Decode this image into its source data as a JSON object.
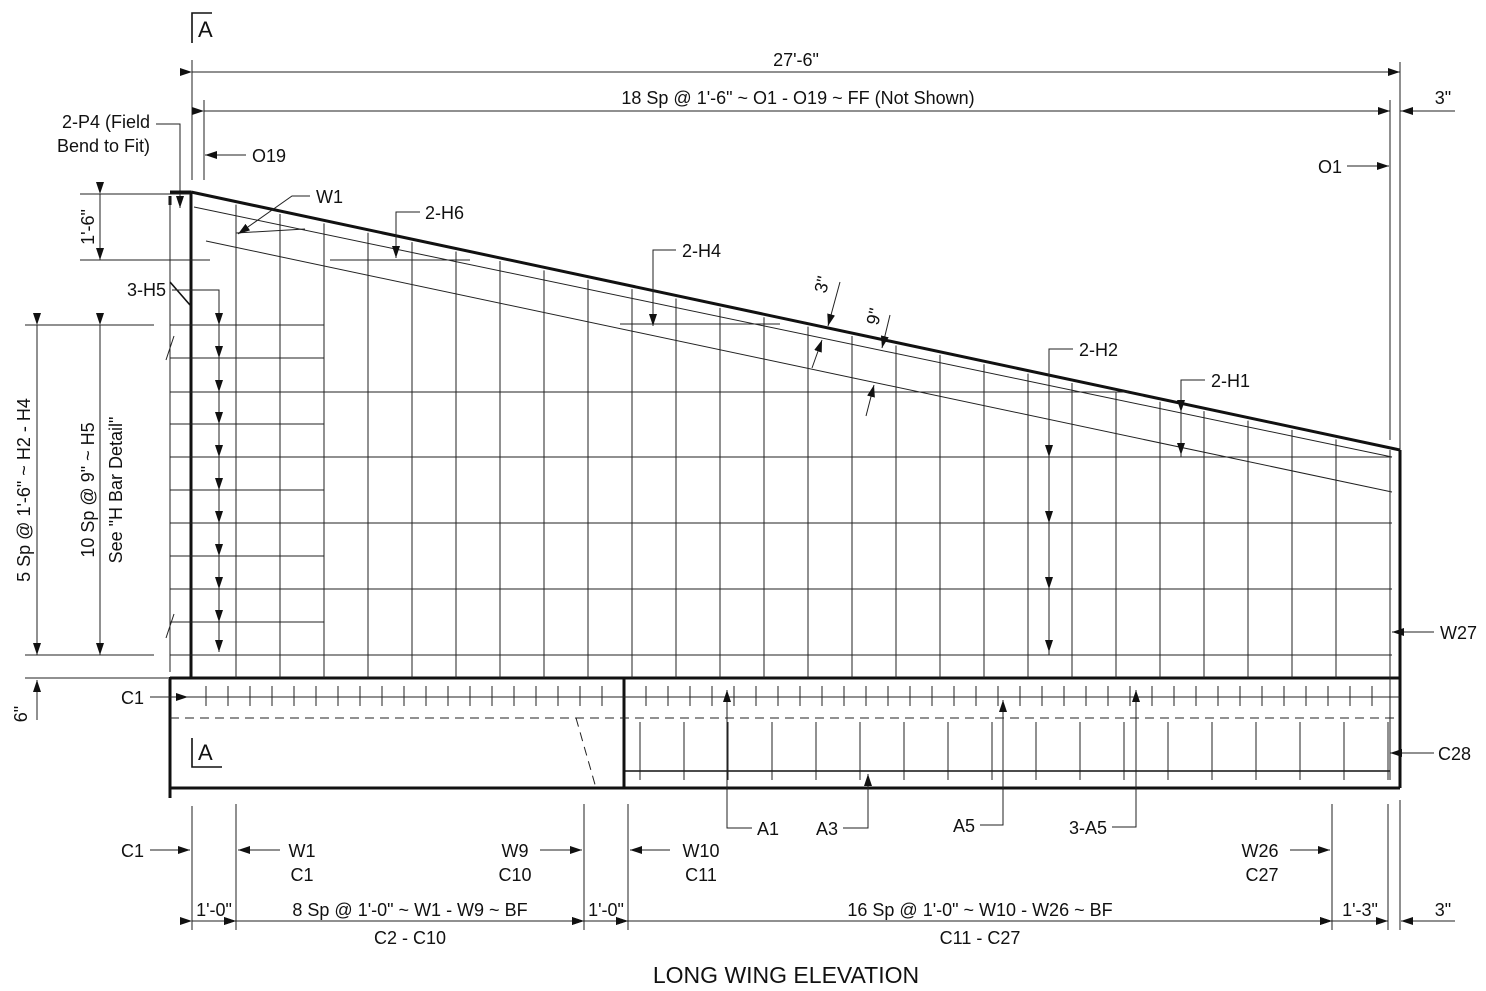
{
  "title": "LONG WING ELEVATION",
  "section_mark": "A",
  "dims": {
    "overall": "27'-6\"",
    "o_spacing": "18 Sp @ 1'-6\" ~ O1 - O19 ~ FF (Not Shown)",
    "top_right": "3\"",
    "bottom_right": "3\"",
    "h4_spacing": "5 Sp @ 1'-6\" ~ H2 - H4",
    "h5_spacing": "10 Sp @ 9\" ~ H5",
    "h5_note": "See \"H Bar Detail\"",
    "one_six": "1'-6\"",
    "six": "6\"",
    "three_slope": "3\"",
    "nine_slope": "9\"",
    "b_1_0_left": "1'-0\"",
    "b_w_span": "8 Sp @ 1'-0\" ~ W1 - W9 ~ BF",
    "b_c_span": "C2 - C10",
    "b_1_0_mid": "1'-0\"",
    "b_w_span2": "16 Sp @ 1'-0\" ~ W10 - W26 ~ BF",
    "b_c_span2": "C11 - C27",
    "b_1_3": "1'-3\""
  },
  "labels": {
    "p4_line1": "2-P4 (Field",
    "p4_line2": "Bend to Fit)",
    "o19": "O19",
    "o1": "O1",
    "w1": "W1",
    "h6": "2-H6",
    "h4": "2-H4",
    "h5": "3-H5",
    "h2": "2-H2",
    "h1": "2-H1",
    "w27": "W27",
    "c1": "C1",
    "c28": "C28",
    "a1": "A1",
    "a3": "A3",
    "a5": "A5",
    "a5x3": "3-A5",
    "c1_bottom": "C1",
    "w1_b": "W1",
    "c1_b": "C1",
    "w9_b": "W9",
    "c10_b": "C10",
    "w10_b": "W10",
    "c11_b": "C11",
    "w26_b": "W26",
    "c27_b": "C27"
  }
}
